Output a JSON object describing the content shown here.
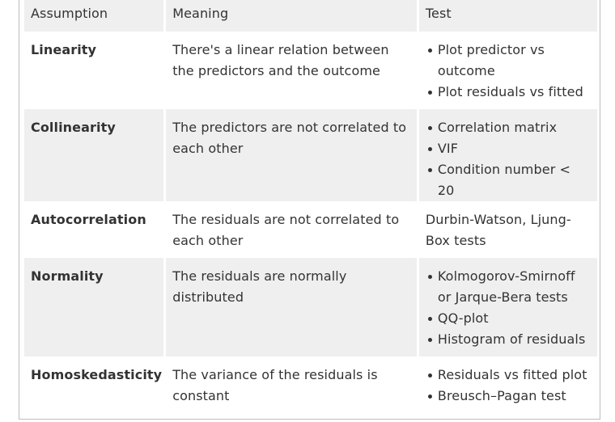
{
  "table": {
    "headers": [
      "Assumption",
      "Meaning",
      "Test"
    ],
    "rows": [
      {
        "assumption": "Linearity",
        "meaning": "There's a linear relation between the predictors and the outcome",
        "tests": [
          "Plot predictor vs outcome",
          "Plot residuals vs fitted"
        ]
      },
      {
        "assumption": "Collinearity",
        "meaning": "The predictors are not correlated to each other",
        "tests": [
          "Correlation matrix",
          "VIF",
          "Condition number < 20"
        ]
      },
      {
        "assumption": "Autocorrelation",
        "meaning": "The residuals are not correlated to each other",
        "test_text": "Durbin-Watson, Ljung-Box tests"
      },
      {
        "assumption": "Normality",
        "meaning": "The residuals are normally distributed",
        "tests": [
          "Kolmogorov-Smirnoff or Jarque-Bera tests",
          "QQ-plot",
          "Histogram of residuals"
        ]
      },
      {
        "assumption": "Homoskedasticity",
        "meaning": "The variance of the residuals is constant",
        "tests": [
          "Residuals vs fitted plot",
          "Breusch–Pagan test"
        ]
      }
    ]
  },
  "colors": {
    "shade": "#efefef",
    "text": "#333333",
    "border": "#bdbdbd"
  }
}
